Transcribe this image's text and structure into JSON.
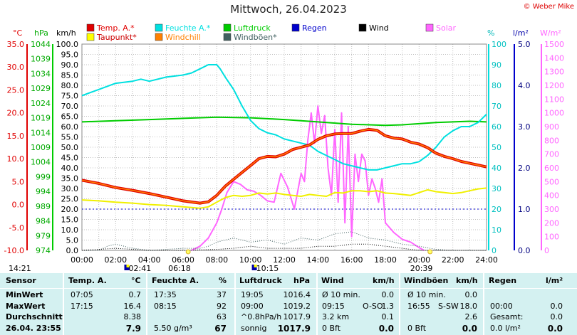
{
  "title": "Mittwoch, 26.04.2023",
  "copyright": "© Weber Mike",
  "legend": [
    {
      "label": "Temp. A.*",
      "color": "#e00000",
      "col": 0,
      "row": 0
    },
    {
      "label": "Feuchte A.*",
      "color": "#00e0e0",
      "col": 1,
      "row": 0
    },
    {
      "label": "Luftdruck",
      "color": "#00cc00",
      "col": 2,
      "row": 0
    },
    {
      "label": "Regen",
      "color": "#0000cc",
      "col": 3,
      "row": 0
    },
    {
      "label": "Wind",
      "color": "#000000",
      "col": 4,
      "row": 0
    },
    {
      "label": "Solar",
      "color": "#ff66ff",
      "col": 5,
      "row": 0
    },
    {
      "label": "Taupunkt*",
      "color": "#ffff00",
      "col": 0,
      "row": 1
    },
    {
      "label": "Windchill",
      "color": "#ff8000",
      "col": 1,
      "row": 1
    },
    {
      "label": "Windböen*",
      "color": "#406060",
      "col": 2,
      "row": 1
    }
  ],
  "axis_units": {
    "temp": "°C",
    "press": "hPa",
    "wind": "km/h",
    "hum": "%",
    "rain": "l/m²",
    "solar": "W/m²"
  },
  "colors": {
    "temp": "#e00000",
    "dew": "#f0f000",
    "hum": "#00e0e0",
    "press": "#00cc00",
    "rain": "#0000cc",
    "wind": "#000000",
    "gust": "#406060",
    "solar": "#ff66ff",
    "chill": "#ff8000",
    "grid": "#c0c0c0",
    "table_bg": "#d4f1f1"
  },
  "chart_data": {
    "type": "line",
    "title": "Mittwoch, 26.04.2023",
    "x_label": "",
    "x_ticks": [
      "00:00",
      "02:00",
      "04:00",
      "06:00",
      "08:00",
      "10:00",
      "12:00",
      "14:00",
      "16:00",
      "18:00",
      "20:00",
      "22:00",
      "24:00"
    ],
    "axes": {
      "temp_c": {
        "min": -10,
        "max": 35,
        "ticks": [
          "35.0",
          "30.0",
          "25.0",
          "20.0",
          "15.0",
          "10.0",
          "5.0",
          "0.0",
          "-5.0",
          "-10.0"
        ]
      },
      "pressure_hpa": {
        "min": 974,
        "max": 1044,
        "ticks": [
          "1044",
          "1039",
          "1034",
          "1029",
          "1024",
          "1019",
          "1014",
          "1009",
          "1004",
          "999",
          "994",
          "989",
          "984",
          "979",
          "974"
        ]
      },
      "wind_kmh": {
        "min": 0,
        "max": 100,
        "ticks": [
          "100.0",
          "95.0",
          "90.0",
          "85.0",
          "80.0",
          "75.0",
          "70.0",
          "65.0",
          "60.0",
          "55.0",
          "50.0",
          "45.0",
          "40.0",
          "35.0",
          "30.0",
          "25.0",
          "20.0",
          "15.0",
          "10.0",
          "5.0",
          "0.0"
        ]
      },
      "humidity_pct": {
        "min": 0,
        "max": 100,
        "ticks": [
          "100",
          "90",
          "80",
          "70",
          "60",
          "50",
          "40",
          "30",
          "20",
          "10",
          "0"
        ]
      },
      "rain_lm2": {
        "min": 0,
        "max": 5,
        "ticks": [
          "5.0",
          "4.0",
          "3.0",
          "2.0",
          "1.0",
          "0.0"
        ]
      },
      "solar_wm2": {
        "min": 0,
        "max": 1500,
        "ticks": [
          "1500",
          "1400",
          "1300",
          "1200",
          "1100",
          "1000",
          "900",
          "800",
          "700",
          "600",
          "500",
          "400",
          "300",
          "200",
          "100",
          "0"
        ]
      }
    },
    "series": [
      {
        "name": "Temp. A.*",
        "axis": "temp_c",
        "x": [
          0,
          1,
          2,
          3,
          4,
          5,
          6,
          7,
          7.5,
          8,
          8.5,
          9,
          9.5,
          10,
          10.5,
          11,
          11.5,
          12,
          12.5,
          13,
          13.5,
          14,
          14.5,
          15,
          15.5,
          16,
          16.5,
          17,
          17.5,
          18,
          18.5,
          19,
          19.5,
          20,
          20.5,
          21,
          21.5,
          22,
          22.5,
          23,
          23.5,
          24
        ],
        "y": [
          5.3,
          4.6,
          3.7,
          3.1,
          2.4,
          1.6,
          0.8,
          0.3,
          0.6,
          2.0,
          4.0,
          5.5,
          7.0,
          8.5,
          10.0,
          10.5,
          10.4,
          11.0,
          12.0,
          12.5,
          13.0,
          14.2,
          15.0,
          15.4,
          15.5,
          15.5,
          16.0,
          16.4,
          16.2,
          15.0,
          14.5,
          14.3,
          13.6,
          13.2,
          12.4,
          11.2,
          10.5,
          10.0,
          9.4,
          9.0,
          8.6,
          8.2
        ]
      },
      {
        "name": "Taupunkt*",
        "axis": "temp_c",
        "x": [
          0,
          1,
          2,
          3,
          4,
          5,
          6,
          7,
          7.5,
          8,
          8.5,
          9,
          9.5,
          10,
          10.5,
          11,
          11.5,
          12,
          12.5,
          13,
          13.5,
          14,
          14.5,
          15,
          15.5,
          16,
          16.5,
          17,
          17.5,
          18,
          18.5,
          19,
          19.5,
          20,
          20.5,
          21,
          21.5,
          22,
          22.5,
          23,
          23.5,
          24
        ],
        "y": [
          1.0,
          0.8,
          0.5,
          0.3,
          0.0,
          -0.2,
          -0.5,
          -0.8,
          -0.5,
          0.5,
          1.5,
          2.0,
          1.8,
          2.0,
          2.5,
          2.3,
          2.5,
          2.2,
          2.0,
          1.8,
          2.2,
          2.0,
          1.8,
          2.6,
          2.5,
          3.0,
          3.0,
          2.8,
          3.0,
          2.5,
          2.4,
          2.2,
          2.0,
          2.6,
          3.2,
          2.8,
          2.6,
          2.4,
          2.6,
          3.0,
          3.4,
          3.6
        ]
      },
      {
        "name": "Feuchte A.*",
        "axis": "humidity_pct",
        "x": [
          0,
          1,
          2,
          3,
          3.5,
          4,
          5,
          6,
          6.5,
          7,
          7.5,
          8,
          8.2,
          8.5,
          9,
          9.5,
          10,
          10.5,
          11,
          11.5,
          12,
          12.5,
          13,
          13.5,
          14,
          14.5,
          15,
          15.5,
          16,
          16.5,
          17,
          17.5,
          18,
          18.5,
          19,
          19.5,
          20,
          20.5,
          21,
          21.5,
          22,
          22.5,
          23,
          23.5,
          24
        ],
        "y": [
          75,
          78,
          81,
          82,
          83,
          82,
          84,
          85,
          86,
          88,
          90,
          90,
          88,
          84,
          78,
          70,
          63,
          59,
          57,
          56,
          54,
          53,
          52,
          51,
          48,
          46,
          44,
          42,
          41,
          40,
          39,
          39,
          40,
          41,
          42,
          42,
          43,
          46,
          50,
          55,
          58,
          60,
          60,
          62,
          66
        ]
      },
      {
        "name": "Luftdruck",
        "axis": "pressure_hpa",
        "x": [
          0,
          2,
          4,
          6,
          8,
          10,
          12,
          14,
          16,
          18,
          19,
          20,
          21,
          22,
          23,
          24
        ],
        "y": [
          1017.6,
          1018.0,
          1018.4,
          1018.8,
          1019.2,
          1019.0,
          1018.4,
          1017.6,
          1016.8,
          1016.4,
          1016.6,
          1017.0,
          1017.4,
          1017.6,
          1017.8,
          1017.6
        ]
      },
      {
        "name": "Solar",
        "axis": "solar_wm2",
        "x": [
          6.5,
          7,
          7.5,
          8,
          8.3,
          8.6,
          9,
          9.4,
          9.8,
          10.2,
          10.6,
          11,
          11.4,
          11.8,
          12.2,
          12.6,
          13,
          13.2,
          13.4,
          13.6,
          13.8,
          14,
          14.2,
          14.4,
          14.6,
          14.8,
          15,
          15.2,
          15.4,
          15.6,
          15.8,
          16,
          16.2,
          16.4,
          16.6,
          16.8,
          17,
          17.2,
          17.4,
          17.6,
          17.8,
          18,
          18.5,
          19,
          19.5,
          20,
          20.3
        ],
        "y": [
          0,
          30,
          90,
          200,
          300,
          420,
          500,
          480,
          440,
          430,
          400,
          360,
          350,
          560,
          460,
          300,
          560,
          500,
          800,
          1000,
          780,
          1050,
          850,
          980,
          600,
          400,
          880,
          350,
          1000,
          200,
          900,
          100,
          700,
          500,
          700,
          650,
          400,
          520,
          450,
          350,
          520,
          200,
          130,
          80,
          60,
          20,
          0
        ]
      },
      {
        "name": "Windböen*",
        "axis": "wind_kmh",
        "x": [
          0,
          1,
          1.5,
          2,
          2.5,
          3,
          4,
          5,
          6,
          7,
          7.5,
          8,
          9,
          10,
          11,
          12,
          13,
          14,
          15,
          16,
          17,
          18,
          19,
          20,
          21,
          22,
          23,
          24
        ],
        "y": [
          0,
          0,
          2,
          3,
          2,
          1,
          0,
          0.5,
          1,
          1,
          2,
          4,
          6,
          4,
          5,
          3,
          6,
          5,
          8,
          9,
          6,
          5,
          3,
          2,
          0.5,
          0,
          0,
          0
        ]
      },
      {
        "name": "Wind",
        "axis": "wind_kmh",
        "x": [
          0,
          2,
          4,
          6,
          8,
          9,
          10,
          11,
          12,
          13,
          14,
          15,
          16,
          17,
          18,
          19,
          20,
          21,
          22,
          24
        ],
        "y": [
          0,
          1,
          0,
          0,
          0.5,
          1,
          2,
          1,
          1,
          1,
          2,
          2,
          3,
          3,
          2,
          1,
          0,
          0,
          0,
          0
        ]
      }
    ]
  },
  "sun": {
    "rise": "06:18",
    "set": "20:39",
    "left_label": "14:21",
    "mid_label1": "02:41",
    "mid_label2": "10:15"
  },
  "table": {
    "headers": {
      "sensor": "Sensor",
      "temp": "Temp. A.",
      "temp_unit": "°C",
      "hum": "Feuchte A.",
      "hum_unit": "%",
      "press": "Luftdruck",
      "press_unit": "hPa",
      "wind": "Wind",
      "wind_unit": "km/h",
      "gust": "Windböen",
      "gust_unit": "km/h",
      "rain": "Regen",
      "rain_unit": "l/m²"
    },
    "rows": [
      {
        "label": "MinWert",
        "temp_t": "07:05",
        "temp_v": "0.7",
        "hum_t": "17:35",
        "hum_v": "37",
        "press_t": "19:05",
        "press_v": "1016.4",
        "wind_t": "Ø 10 min.",
        "wind_v": "0.0",
        "gust_t": "Ø 10 min.",
        "gust_v": "0.0",
        "rain_t": "",
        "rain_v": ""
      },
      {
        "label": "MaxWert",
        "temp_t": "17:15",
        "temp_v": "16.4",
        "hum_t": "08:15",
        "hum_v": "92",
        "press_t": "09:00",
        "press_v": "1019.2",
        "wind_t": "09:15",
        "wind_m": "O-SO",
        "wind_v": "1.3",
        "gust_t": "16:55",
        "gust_m": "S-SW",
        "gust_v": "18.0",
        "rain_t": "00:00",
        "rain_v": "0.0"
      },
      {
        "label": "Durchschnitt",
        "temp_t": "",
        "temp_v": "8.38",
        "hum_t": "",
        "hum_v": "63",
        "press_t": "^0.8hPa/h",
        "press_v": "1017.9",
        "wind_t": "3.2 km",
        "wind_v": "0.1",
        "gust_t": "",
        "gust_v": "2.6",
        "rain_t": "Gesamt:",
        "rain_v": "0.0"
      },
      {
        "label": "26.04. 23:55",
        "temp_t": "",
        "temp_v": "7.9",
        "hum_t": "5.50 g/m³",
        "hum_v": "67",
        "press_t": "sonnig",
        "press_v": "1017.9",
        "wind_t": "0 Bft",
        "wind_v": "0.0",
        "gust_t": "0 Bft",
        "gust_v": "0.0",
        "rain_t": "0.0 l/m²",
        "rain_v": "0.0"
      }
    ]
  }
}
